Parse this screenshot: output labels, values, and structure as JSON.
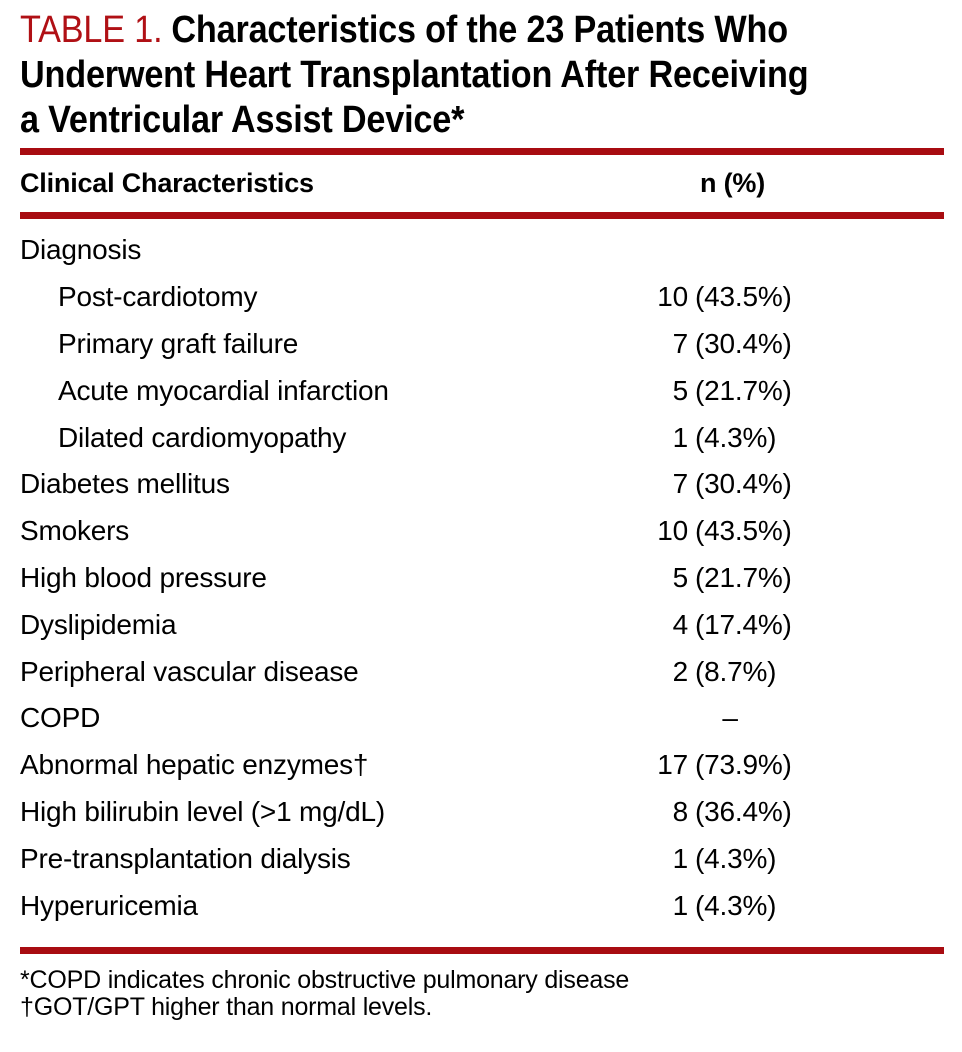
{
  "colors": {
    "title_red": "#B01015",
    "rule_red": "#A80C11",
    "text": "#000000",
    "background": "#FFFFFF"
  },
  "title": {
    "label": "TABLE 1.",
    "lines": [
      "Characteristics of the 23 Patients Who",
      "Underwent Heart Transplantation After Receiving",
      "a Ventricular Assist Device*"
    ]
  },
  "table": {
    "columns": {
      "label": "Clinical Characteristics",
      "value": "n (%)"
    },
    "rows": [
      {
        "label": "Diagnosis",
        "indent": false,
        "n": "",
        "pct": ""
      },
      {
        "label": "Post-cardiotomy",
        "indent": true,
        "n": "10",
        "pct": "(43.5%)"
      },
      {
        "label": "Primary graft failure",
        "indent": true,
        "n": "7",
        "pct": "(30.4%)"
      },
      {
        "label": "Acute myocardial infarction",
        "indent": true,
        "n": "5",
        "pct": "(21.7%)"
      },
      {
        "label": "Dilated cardiomyopathy",
        "indent": true,
        "n": "1",
        "pct": "(4.3%)"
      },
      {
        "label": "Diabetes mellitus",
        "indent": false,
        "n": "7",
        "pct": "(30.4%)"
      },
      {
        "label": "Smokers",
        "indent": false,
        "n": "10",
        "pct": "(43.5%)"
      },
      {
        "label": "High blood pressure",
        "indent": false,
        "n": "5",
        "pct": "(21.7%)"
      },
      {
        "label": "Dyslipidemia",
        "indent": false,
        "n": "4",
        "pct": "(17.4%)"
      },
      {
        "label": "Peripheral vascular disease",
        "indent": false,
        "n": "2",
        "pct": "(8.7%)"
      },
      {
        "label": "COPD",
        "indent": false,
        "n": "",
        "pct": "–",
        "dash": true
      },
      {
        "label": "Abnormal hepatic enzymes†",
        "indent": false,
        "n": "17",
        "pct": "(73.9%)"
      },
      {
        "label": "High bilirubin level (>1 mg/dL)",
        "indent": false,
        "n": "8",
        "pct": "(36.4%)"
      },
      {
        "label": "Pre-transplantation dialysis",
        "indent": false,
        "n": "1",
        "pct": "(4.3%)"
      },
      {
        "label": "Hyperuricemia",
        "indent": false,
        "n": "1",
        "pct": "(4.3%)"
      }
    ]
  },
  "footnotes": [
    "*COPD indicates chronic obstructive pulmonary disease",
    "†GOT/GPT higher than normal levels."
  ]
}
